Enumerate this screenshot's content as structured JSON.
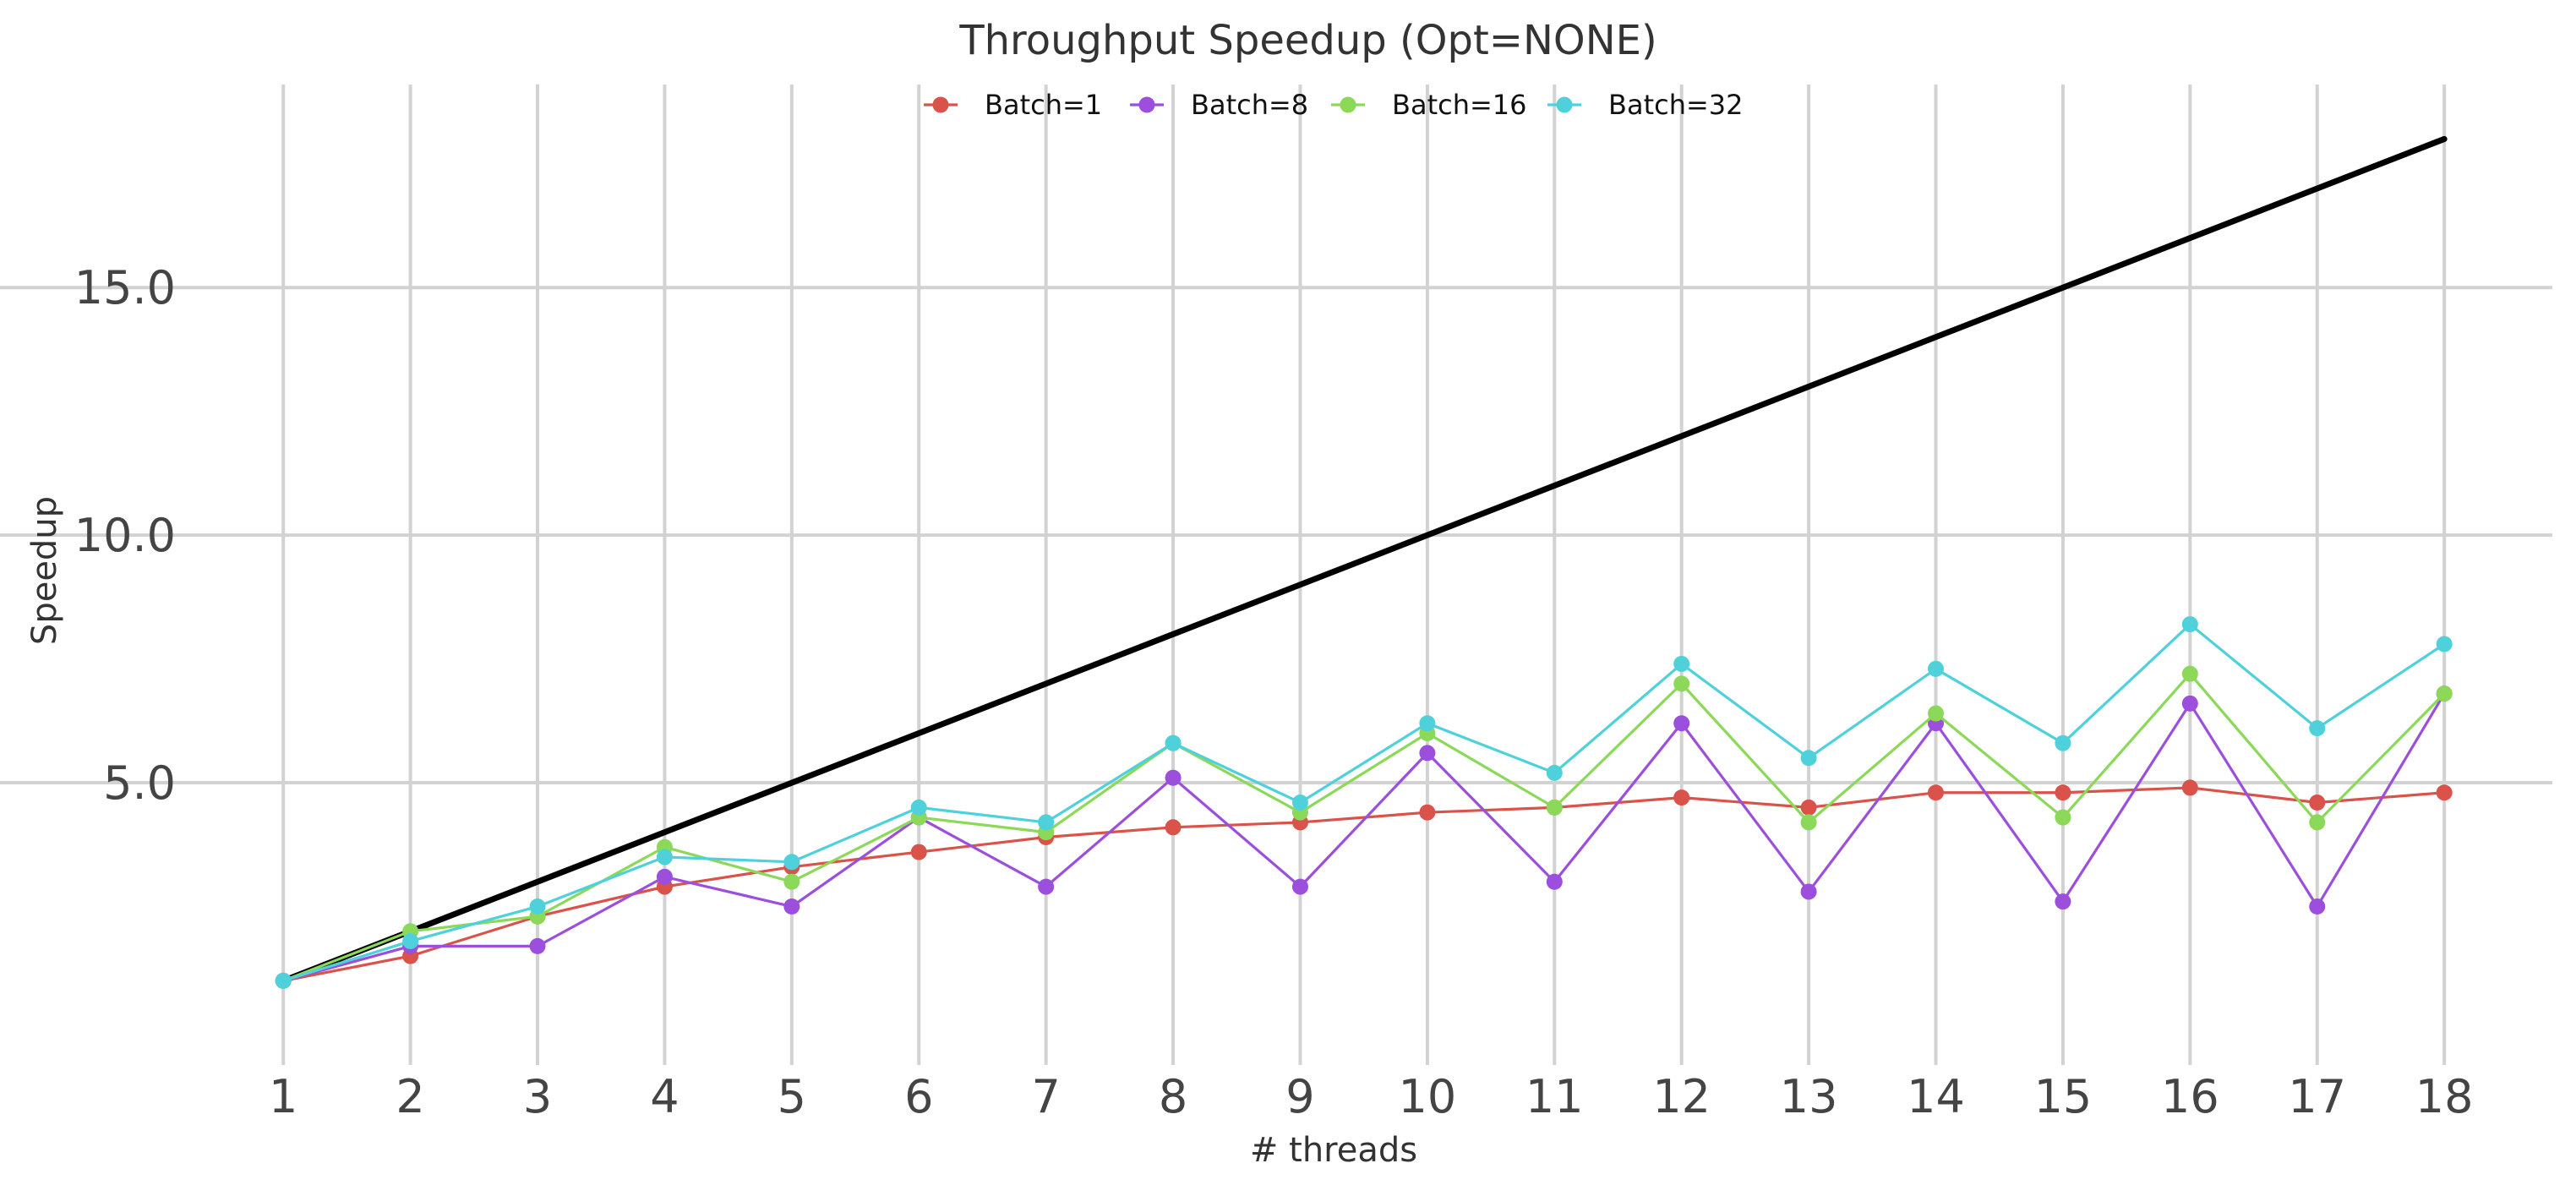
{
  "chart_data": {
    "type": "line",
    "title": "Throughput Speedup (Opt=NONE)",
    "xlabel": "# threads",
    "ylabel": "Speedup",
    "x": [
      1,
      2,
      3,
      4,
      5,
      6,
      7,
      8,
      9,
      10,
      11,
      12,
      13,
      14,
      15,
      16,
      17,
      18
    ],
    "x_tick_labels": [
      "1",
      "2",
      "3",
      "4",
      "5",
      "6",
      "7",
      "8",
      "9",
      "10",
      "11",
      "12",
      "13",
      "14",
      "15",
      "16",
      "17",
      "18"
    ],
    "y_tick_labels": [
      "5.0",
      "10.0",
      "15.0"
    ],
    "y_ticks": [
      5,
      10,
      15
    ],
    "xlim": [
      0.5,
      18.85
    ],
    "ylim": [
      -0.7,
      19.1
    ],
    "grid": true,
    "legend_position": "top-center",
    "ideal_line": {
      "x": [
        1,
        18
      ],
      "y": [
        1,
        18
      ],
      "color": "#000000"
    },
    "series": [
      {
        "name": "Batch=1",
        "color": "#d9534a",
        "values": [
          1.0,
          1.5,
          2.3,
          2.9,
          3.3,
          3.6,
          3.9,
          4.1,
          4.2,
          4.4,
          4.5,
          4.7,
          4.5,
          4.8,
          4.8,
          4.9,
          4.6,
          4.8
        ]
      },
      {
        "name": "Batch=8",
        "color": "#9b4fdc",
        "values": [
          1.0,
          1.7,
          1.7,
          3.1,
          2.5,
          4.3,
          2.9,
          5.1,
          2.9,
          5.6,
          3.0,
          6.2,
          2.8,
          6.2,
          2.6,
          6.6,
          2.5,
          6.8
        ]
      },
      {
        "name": "Batch=16",
        "color": "#8cd95a",
        "values": [
          1.0,
          2.0,
          2.3,
          3.7,
          3.0,
          4.3,
          4.0,
          5.8,
          4.4,
          6.0,
          4.5,
          7.0,
          4.2,
          6.4,
          4.3,
          7.2,
          4.2,
          6.8
        ]
      },
      {
        "name": "Batch=32",
        "color": "#4fd1dc",
        "values": [
          1.0,
          1.8,
          2.5,
          3.5,
          3.4,
          4.5,
          4.2,
          5.8,
          4.6,
          6.2,
          5.2,
          7.4,
          5.5,
          7.3,
          5.8,
          8.2,
          6.1,
          7.8
        ]
      }
    ]
  }
}
